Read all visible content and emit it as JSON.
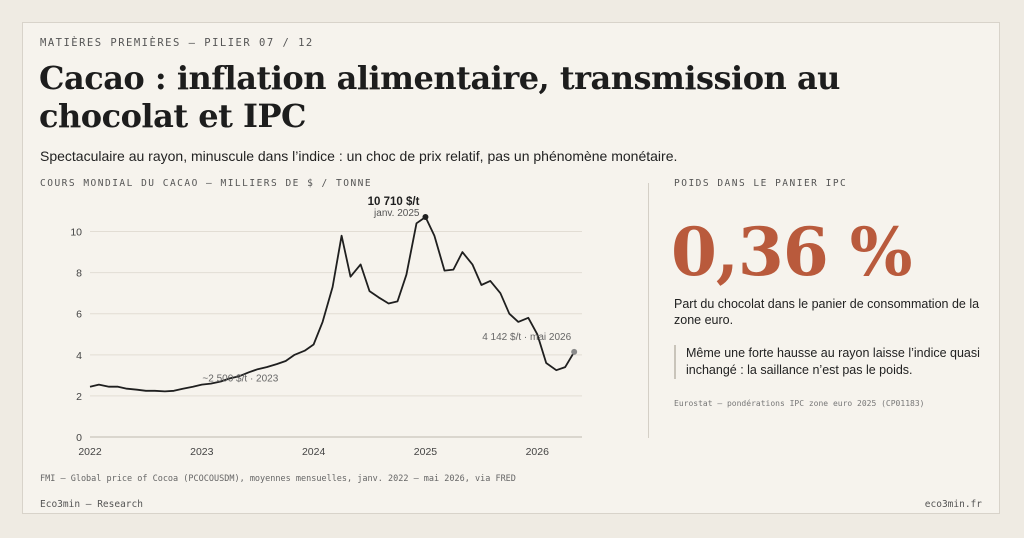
{
  "header": {
    "kicker": "MATIÈRES PREMIÈRES — PILIER 07 / 12",
    "title": "Cacao : inflation alimentaire, transmission au chocolat et IPC",
    "subtitle": "Spectaculaire au rayon, minuscule dans l’indice : un choc de prix relatif, pas un phénomène monétaire."
  },
  "chart_label": "COURS MONDIAL DU CACAO — MILLIERS DE $ / TONNE",
  "chart_source": "FMI — Global price of Cocoa (PCOCOUSDM), moyennes mensuelles, janv. 2022 – mai 2026, via FRED",
  "chart_data": {
    "type": "line",
    "title": "",
    "xlabel": "",
    "ylabel": "",
    "ylim": [
      0,
      11
    ],
    "yticks": [
      0,
      2,
      4,
      6,
      8,
      10
    ],
    "xlim": [
      2022.0,
      2026.4
    ],
    "xticks": [
      2022,
      2023,
      2024,
      2025,
      2026
    ],
    "grid": true,
    "series": [
      {
        "color": "#1f1f1f",
        "points": [
          [
            2022.0,
            2.45
          ],
          [
            2022.08,
            2.55
          ],
          [
            2022.17,
            2.45
          ],
          [
            2022.25,
            2.45
          ],
          [
            2022.33,
            2.35
          ],
          [
            2022.42,
            2.3
          ],
          [
            2022.5,
            2.25
          ],
          [
            2022.58,
            2.25
          ],
          [
            2022.67,
            2.22
          ],
          [
            2022.75,
            2.25
          ],
          [
            2022.83,
            2.35
          ],
          [
            2022.92,
            2.45
          ],
          [
            2023.0,
            2.55
          ],
          [
            2023.08,
            2.6
          ],
          [
            2023.17,
            2.7
          ],
          [
            2023.25,
            2.85
          ],
          [
            2023.33,
            2.95
          ],
          [
            2023.42,
            3.15
          ],
          [
            2023.5,
            3.3
          ],
          [
            2023.58,
            3.4
          ],
          [
            2023.67,
            3.55
          ],
          [
            2023.75,
            3.7
          ],
          [
            2023.83,
            4.0
          ],
          [
            2023.92,
            4.2
          ],
          [
            2024.0,
            4.5
          ],
          [
            2024.08,
            5.6
          ],
          [
            2024.17,
            7.3
          ],
          [
            2024.25,
            9.8
          ],
          [
            2024.33,
            7.8
          ],
          [
            2024.42,
            8.4
          ],
          [
            2024.5,
            7.1
          ],
          [
            2024.58,
            6.8
          ],
          [
            2024.67,
            6.5
          ],
          [
            2024.75,
            6.6
          ],
          [
            2024.83,
            7.9
          ],
          [
            2024.92,
            10.4
          ],
          [
            2025.0,
            10.71
          ],
          [
            2025.08,
            9.8
          ],
          [
            2025.17,
            8.1
          ],
          [
            2025.25,
            8.15
          ],
          [
            2025.33,
            9.0
          ],
          [
            2025.42,
            8.4
          ],
          [
            2025.5,
            7.4
          ],
          [
            2025.58,
            7.6
          ],
          [
            2025.67,
            7.0
          ],
          [
            2025.75,
            6.0
          ],
          [
            2025.83,
            5.6
          ],
          [
            2025.92,
            5.8
          ],
          [
            2026.0,
            5.0
          ],
          [
            2026.08,
            3.6
          ],
          [
            2026.17,
            3.25
          ],
          [
            2026.25,
            3.4
          ],
          [
            2026.33,
            4.142
          ]
        ]
      }
    ],
    "annotations": [
      {
        "label": "10 710 $/t",
        "sublabel": "janv. 2025",
        "x": 2025.0,
        "y": 10.71
      },
      {
        "label": "4 142 $/t · mai 2026",
        "x": 2026.33,
        "y": 4.142
      },
      {
        "label": "~2 500 $/t · 2023",
        "x": 2023.3,
        "y": 2.5
      }
    ]
  },
  "side": {
    "label": "POIDS DANS LE PANIER IPC",
    "value": "0,36 %",
    "value_color": "#b95a3c",
    "description": "Part du chocolat dans le panier de consommation de la zone euro.",
    "quote": "Même une forte hausse au rayon laisse l’indice quasi inchangé : la saillance n’est pas le poids.",
    "source": "Eurostat — pondérations IPC zone euro 2025 (CP01183)"
  },
  "footer": {
    "brand": "Eco3min — Research",
    "site": "eco3min.fr"
  }
}
